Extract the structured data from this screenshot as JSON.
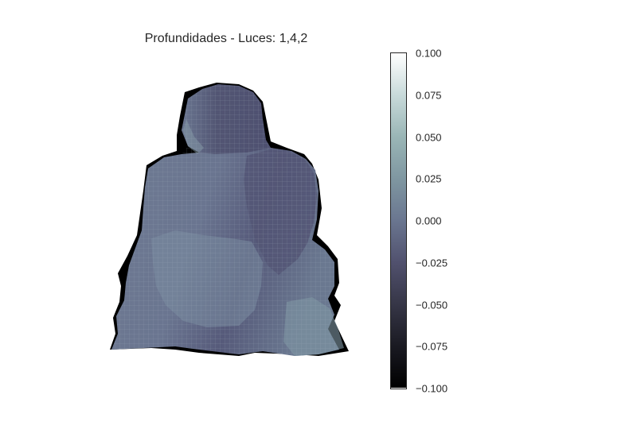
{
  "chart_data": {
    "type": "heatmap",
    "title": "Profundidades - Luces: 1,4,2",
    "colormap": "bone",
    "colorbar": {
      "range": [
        -0.1,
        0.1
      ],
      "ticks": [
        "0.100",
        "0.075",
        "0.050",
        "0.025",
        "0.000",
        "−0.025",
        "−0.050",
        "−0.075",
        "−0.100"
      ],
      "tick_values": [
        0.1,
        0.075,
        0.05,
        0.025,
        0.0,
        -0.025,
        -0.05,
        -0.075,
        -0.1
      ]
    },
    "surface": {
      "description_values": {
        "shadow_edge": -0.1,
        "body_min": -0.03,
        "body_max": 0.02
      }
    },
    "grid": false,
    "axes_visible": false
  }
}
